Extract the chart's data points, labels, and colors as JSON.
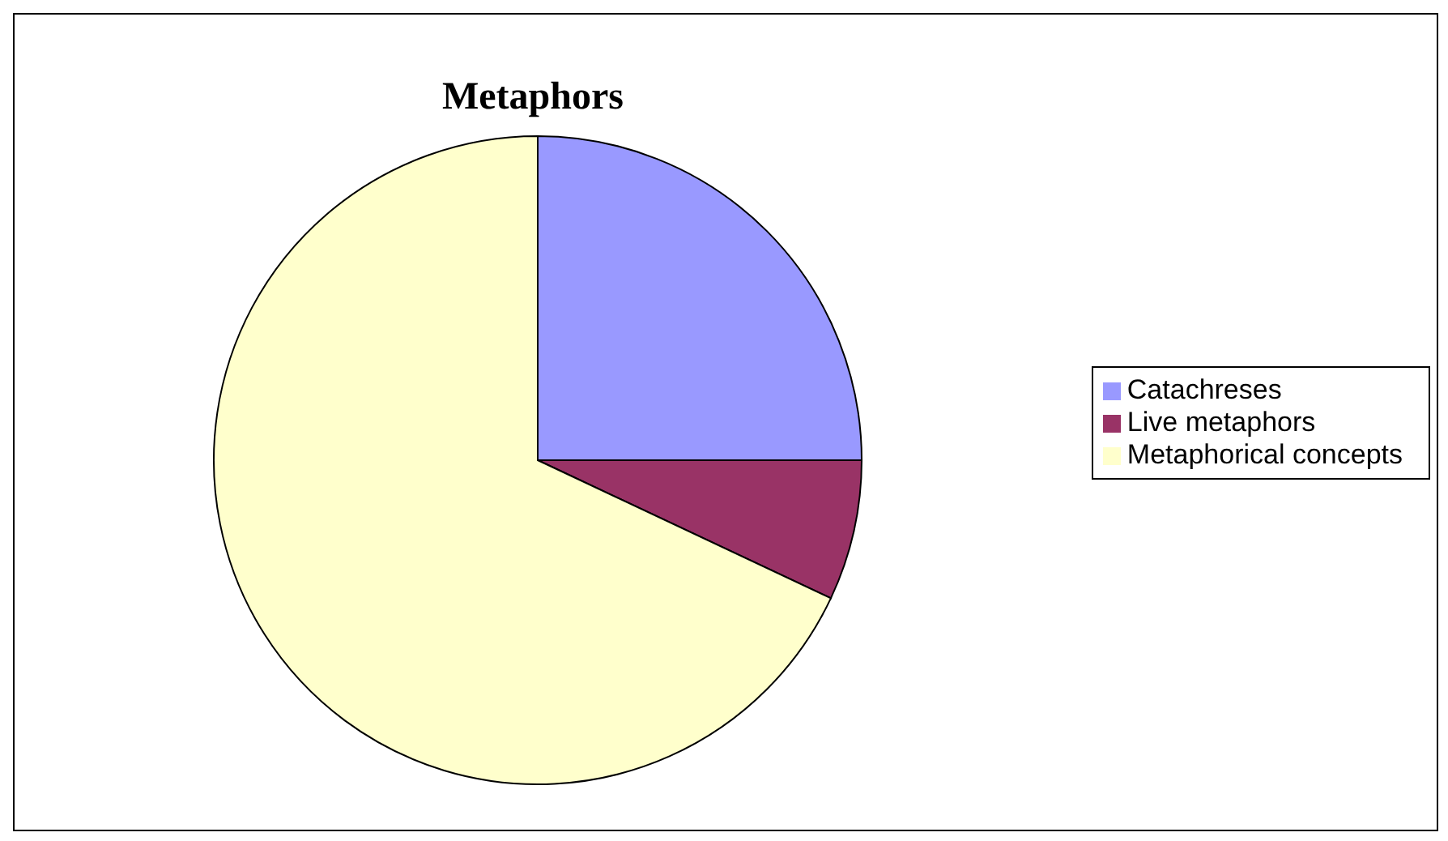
{
  "chart_data": {
    "type": "pie",
    "title": "Metaphors",
    "categories": [
      "Catachreses",
      "Live metaphors",
      "Metaphorical concepts"
    ],
    "values": [
      25,
      7,
      68
    ],
    "colors": [
      "#9999ff",
      "#993366",
      "#ffffcc"
    ],
    "legend": "right"
  }
}
